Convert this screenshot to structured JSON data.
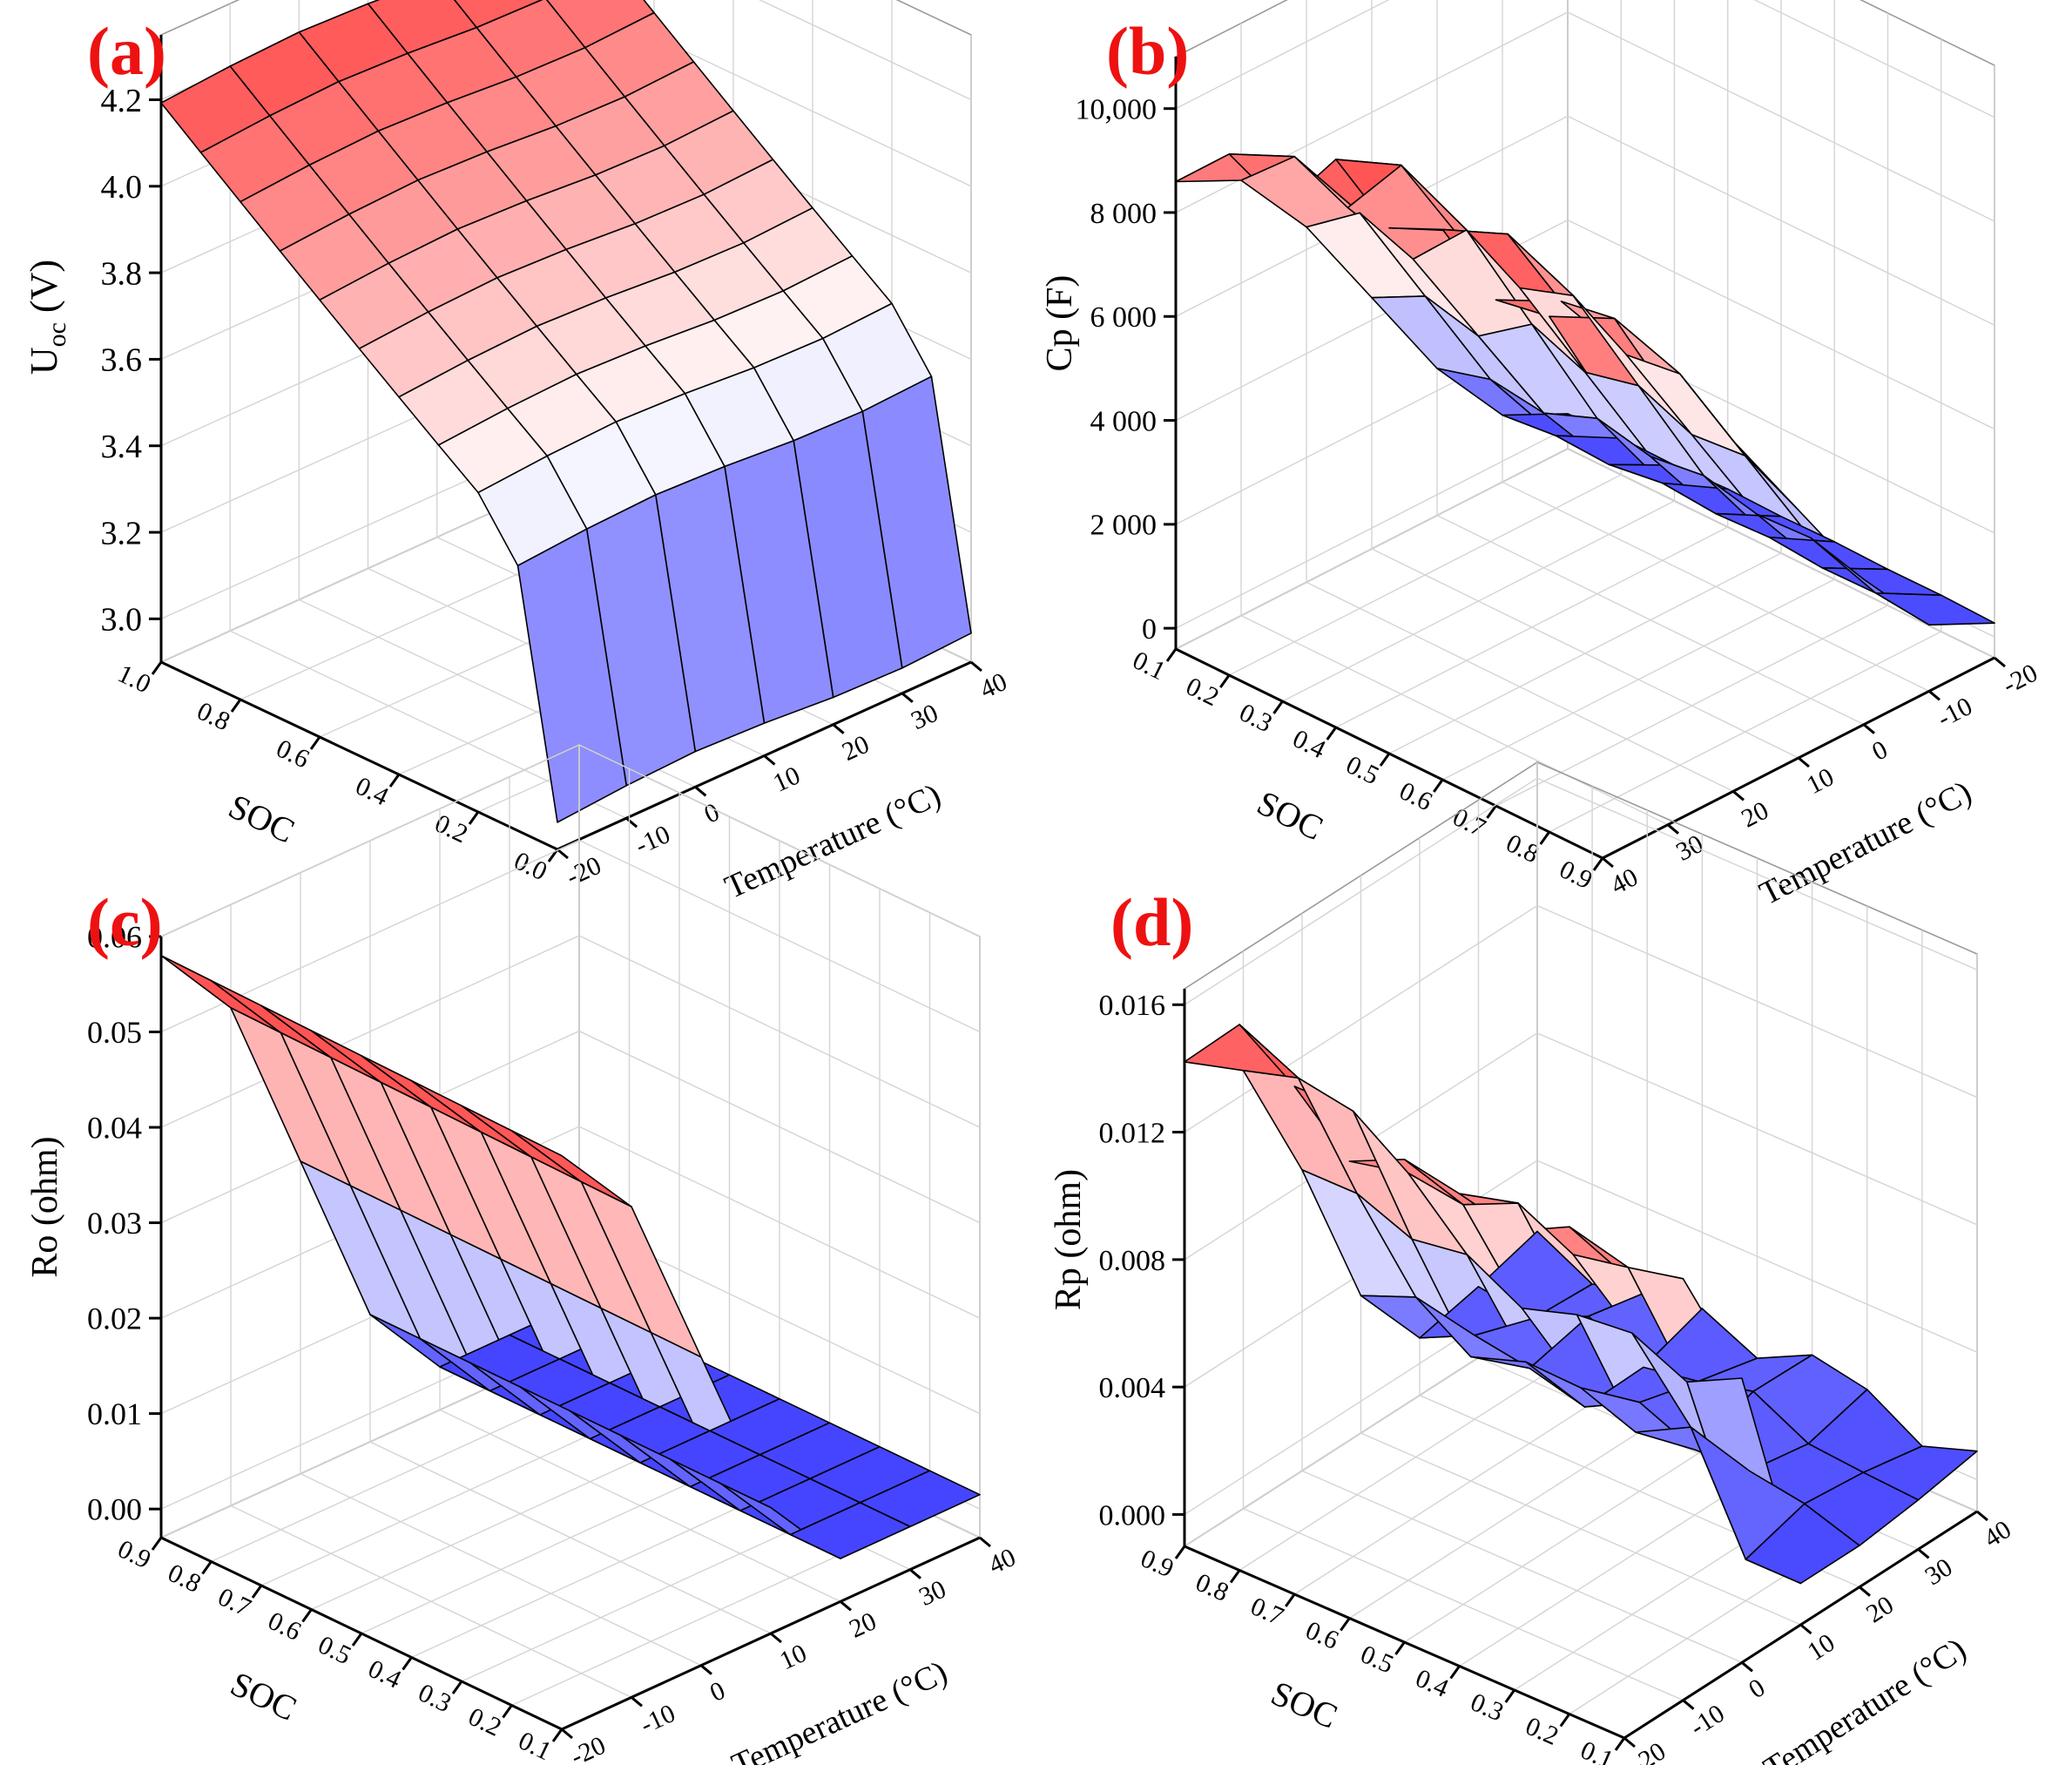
{
  "figure": {
    "colormap": {
      "low": "#2626ff",
      "mid": "#ffffff",
      "high": "#ff2626"
    }
  },
  "chart_data": [
    {
      "panel": "(a)",
      "type": "surface3d",
      "zlabel": "U_oc (V)",
      "zlabel_main": "U",
      "zlabel_sub": "oc",
      "zlabel_suffix": " (V)",
      "xlabel": "Temperature (°C)",
      "ylabel": "SOC",
      "temperature": [
        -20,
        -10,
        0,
        10,
        20,
        30,
        40
      ],
      "soc": [
        1.0,
        0.9,
        0.8,
        0.7,
        0.6,
        0.5,
        0.4,
        0.3,
        0.2,
        0.1,
        0.0
      ],
      "temp_ticks": [
        "-20",
        "-10",
        "0",
        "10",
        "20",
        "30",
        "40"
      ],
      "soc_ticks": [
        "1.0",
        "0.8",
        "0.6",
        "0.4",
        "0.2",
        "0.0"
      ],
      "z_ticks": [
        "3.0",
        "3.2",
        "3.4",
        "3.6",
        "3.8",
        "4.0",
        "4.2"
      ],
      "zlim": [
        2.9,
        4.35
      ]
    },
    {
      "panel": "(b)",
      "type": "surface3d",
      "zlabel": "Cp (F)",
      "xlabel": "Temperature (°C)",
      "ylabel": "SOC",
      "temperature": [
        40,
        30,
        20,
        10,
        0,
        -10,
        -20
      ],
      "soc": [
        0.1,
        0.2,
        0.3,
        0.4,
        0.5,
        0.6,
        0.7,
        0.8,
        0.9
      ],
      "temp_ticks": [
        "40",
        "30",
        "20",
        "10",
        "0",
        "-10",
        "-20"
      ],
      "soc_ticks": [
        "0.1",
        "0.2",
        "0.3",
        "0.4",
        "0.5",
        "0.6",
        "0.7",
        "0.8",
        "0.9"
      ],
      "z_ticks": [
        "0",
        "2 000",
        "4 000",
        "6 000",
        "8 000",
        "10,000"
      ],
      "zlim": [
        -400,
        11000
      ]
    },
    {
      "panel": "(c)",
      "type": "surface3d",
      "zlabel": "Ro (ohm)",
      "xlabel": "Temperature (°C)",
      "ylabel": "SOC",
      "temperature": [
        -20,
        -10,
        0,
        10,
        20,
        30,
        40
      ],
      "soc": [
        0.9,
        0.8,
        0.7,
        0.6,
        0.5,
        0.4,
        0.3,
        0.2,
        0.1
      ],
      "temp_ticks": [
        "-20",
        "-10",
        "0",
        "10",
        "20",
        "30",
        "40"
      ],
      "soc_ticks": [
        "0.9",
        "0.8",
        "0.7",
        "0.6",
        "0.5",
        "0.4",
        "0.3",
        "0.2",
        "0.1"
      ],
      "z_ticks": [
        "0.00",
        "0.01",
        "0.02",
        "0.03",
        "0.04",
        "0.05",
        "0.06"
      ],
      "zlim": [
        -0.003,
        0.06
      ]
    },
    {
      "panel": "(d)",
      "type": "surface3d",
      "zlabel": "Rp (ohm)",
      "xlabel": "Temperature (°C)",
      "ylabel": "SOC",
      "temperature": [
        -20,
        -10,
        0,
        10,
        20,
        30,
        40
      ],
      "soc": [
        0.9,
        0.8,
        0.7,
        0.6,
        0.5,
        0.4,
        0.3,
        0.2,
        0.1
      ],
      "temp_ticks": [
        "-20",
        "-10",
        "0",
        "10",
        "20",
        "30",
        "40"
      ],
      "soc_ticks": [
        "0.9",
        "0.8",
        "0.7",
        "0.6",
        "0.5",
        "0.4",
        "0.3",
        "0.2",
        "0.1"
      ],
      "z_ticks": [
        "0.000",
        "0.004",
        "0.008",
        "0.012",
        "0.016"
      ],
      "zlim": [
        -0.001,
        0.0165
      ]
    }
  ]
}
